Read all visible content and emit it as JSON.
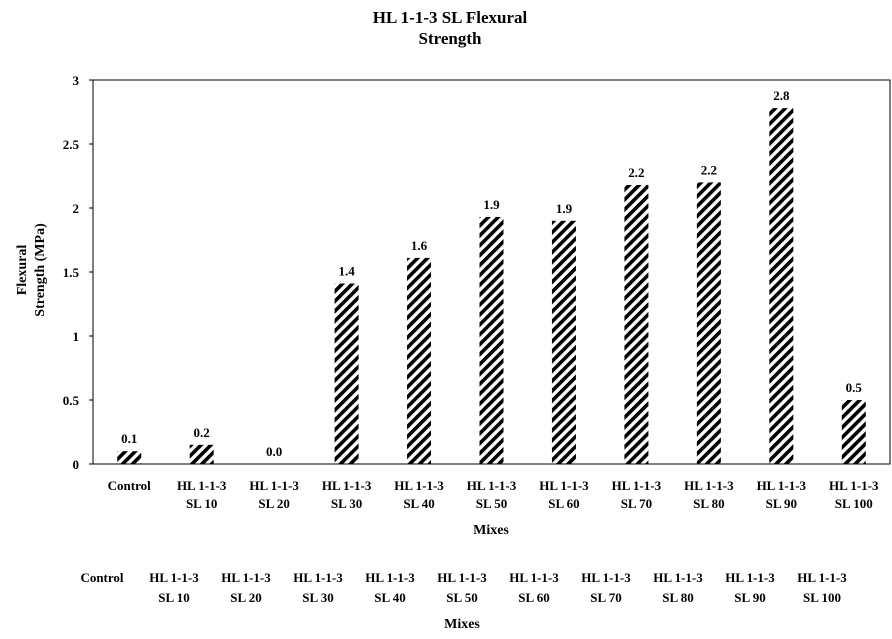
{
  "chart_data": {
    "type": "bar",
    "title": [
      "HL 1-1-3 SL Flexural",
      "Strength"
    ],
    "ylabel": [
      "Flexural",
      "Strength (MPa)"
    ],
    "xlabel": "Mixes",
    "ylim": [
      0,
      3
    ],
    "yticks": [
      "0",
      "0.5",
      "1",
      "1.5",
      "2",
      "2.5",
      "3"
    ],
    "grid": false,
    "legend": "none",
    "bar_pattern": "diagonal-hatch",
    "colors": {
      "bar": "#000000",
      "background": "#ffffff"
    },
    "categories": [
      [
        "Control",
        ""
      ],
      [
        "HL 1-1-3",
        "SL 10"
      ],
      [
        "HL 1-1-3",
        "SL 20"
      ],
      [
        "HL 1-1-3",
        "SL 30"
      ],
      [
        "HL 1-1-3",
        "SL 40"
      ],
      [
        "HL 1-1-3",
        "SL 50"
      ],
      [
        "HL 1-1-3",
        "SL 60"
      ],
      [
        "HL 1-1-3",
        "SL 70"
      ],
      [
        "HL 1-1-3",
        "SL 80"
      ],
      [
        "HL 1-1-3",
        "SL 90"
      ],
      [
        "HL 1-1-3",
        "SL 100"
      ]
    ],
    "values": [
      0.1,
      0.15,
      0.0,
      1.41,
      1.61,
      1.93,
      1.9,
      2.18,
      2.2,
      2.78,
      0.5
    ],
    "data_labels": [
      "0.1",
      "0.2",
      "0.0",
      "1.4",
      "1.6",
      "1.9",
      "1.9",
      "2.2",
      "2.2",
      "2.8",
      "0.5"
    ]
  },
  "footer": {
    "categories": [
      [
        "Control",
        ""
      ],
      [
        "HL 1-1-3",
        "SL 10"
      ],
      [
        "HL 1-1-3",
        "SL 20"
      ],
      [
        "HL 1-1-3",
        "SL 30"
      ],
      [
        "HL 1-1-3",
        "SL 40"
      ],
      [
        "HL 1-1-3",
        "SL 50"
      ],
      [
        "HL 1-1-3",
        "SL 60"
      ],
      [
        "HL 1-1-3",
        "SL 70"
      ],
      [
        "HL 1-1-3",
        "SL 80"
      ],
      [
        "HL 1-1-3",
        "SL 90"
      ],
      [
        "HL 1-1-3",
        "SL 100"
      ]
    ],
    "xlabel": "Mixes"
  }
}
